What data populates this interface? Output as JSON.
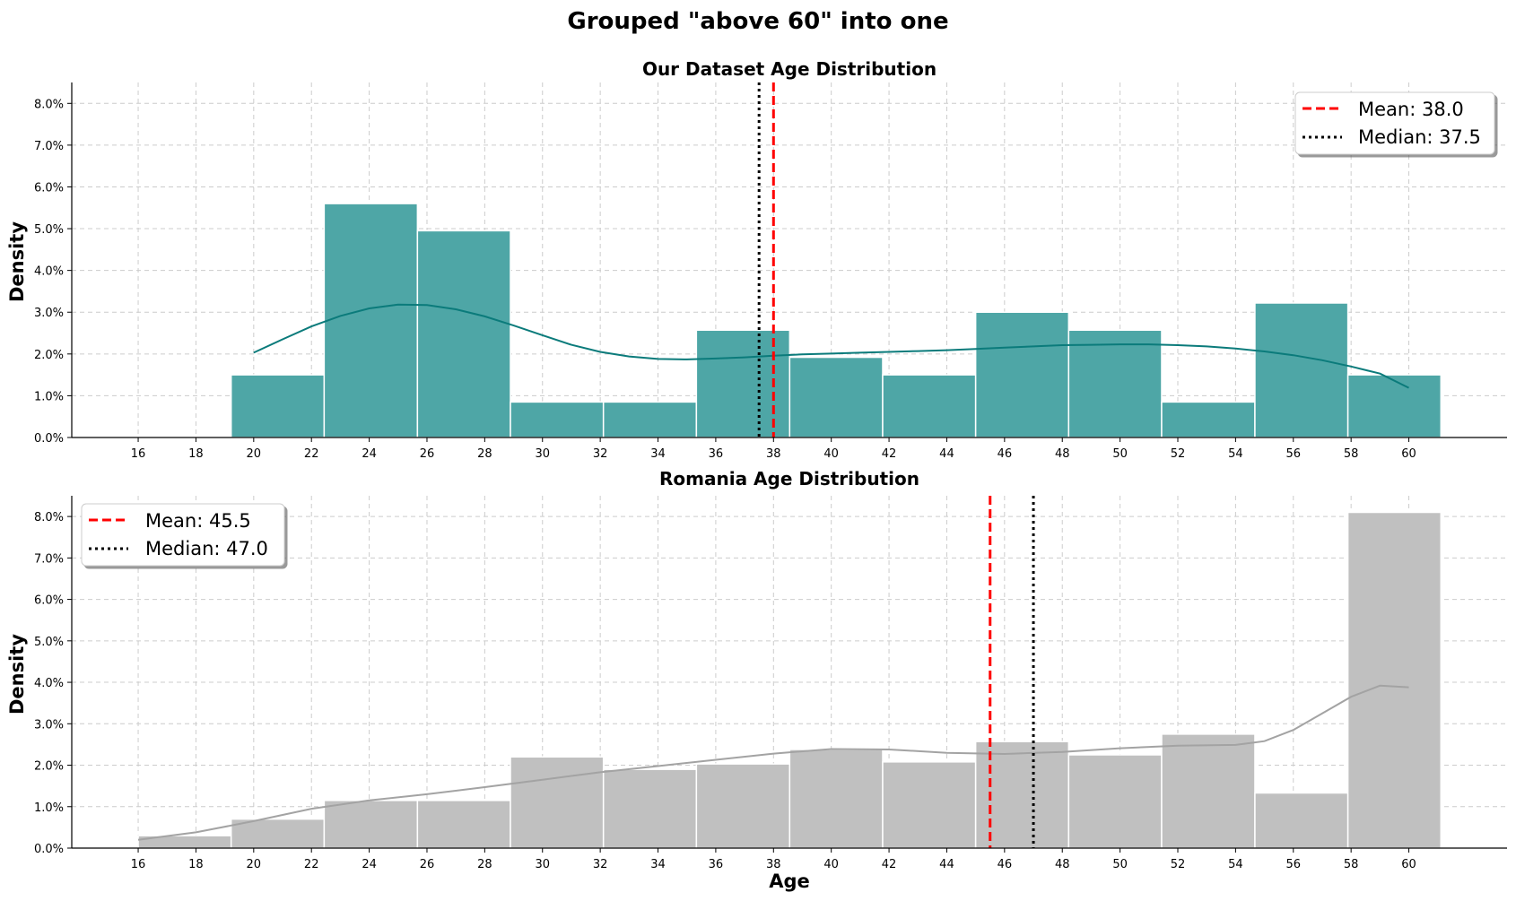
{
  "suptitle": "Grouped \"above 60\" into one",
  "colors": {
    "dataset": "#4ea6a6",
    "dataset_kde": "#0b7b7b",
    "romania": "#c0c0c0",
    "romania_kde": "#a3a3a3",
    "mean_line": "#ff0000",
    "median_line": "#000000",
    "grid": "#cccccc"
  },
  "chart_data": [
    {
      "type": "bar",
      "title": "Our Dataset Age Distribution",
      "xlabel": "",
      "ylabel": "Density",
      "xlim": [
        13.7,
        63.4
      ],
      "ylim": [
        0,
        0.085
      ],
      "xticks": [
        "16",
        "18",
        "20",
        "22",
        "24",
        "26",
        "28",
        "30",
        "32",
        "34",
        "36",
        "38",
        "40",
        "42",
        "44",
        "46",
        "48",
        "50",
        "52",
        "54",
        "56",
        "58",
        "60"
      ],
      "yticks": [
        "0.0%",
        "1.0%",
        "2.0%",
        "3.0%",
        "4.0%",
        "5.0%",
        "6.0%",
        "7.0%",
        "8.0%"
      ],
      "grid": true,
      "bin_edges": [
        16,
        19.22,
        22.44,
        25.67,
        28.89,
        32.11,
        35.33,
        38.56,
        41.78,
        45.0,
        48.22,
        51.44,
        54.67,
        57.89,
        61.11
      ],
      "values": [
        0.0,
        0.015,
        0.056,
        0.0495,
        0.0085,
        0.0085,
        0.0257,
        0.0192,
        0.015,
        0.03,
        0.0257,
        0.0085,
        0.0322,
        0.015
      ],
      "kde": {
        "x": [
          20,
          21,
          22,
          23,
          24,
          25,
          26,
          27,
          28,
          29,
          30,
          31,
          32,
          33,
          34,
          35,
          36,
          37,
          38,
          39,
          40,
          41,
          42,
          43,
          44,
          45,
          46,
          47,
          48,
          49,
          50,
          51,
          52,
          53,
          54,
          55,
          56,
          57,
          58,
          59,
          60
        ],
        "y": [
          0.0203,
          0.0235,
          0.0266,
          0.0291,
          0.0309,
          0.0318,
          0.0317,
          0.0307,
          0.029,
          0.0268,
          0.0245,
          0.0222,
          0.0205,
          0.0194,
          0.0188,
          0.0187,
          0.0189,
          0.0192,
          0.0196,
          0.0199,
          0.0201,
          0.0203,
          0.0205,
          0.0207,
          0.0209,
          0.0212,
          0.0215,
          0.0218,
          0.0221,
          0.0222,
          0.0223,
          0.0223,
          0.0221,
          0.0218,
          0.0213,
          0.0206,
          0.0197,
          0.0185,
          0.017,
          0.0153,
          0.0119
        ]
      },
      "mean": 38.0,
      "median": 37.5,
      "legend": {
        "placement": "top-right",
        "entries": [
          "Mean: 38.0",
          "Median: 37.5"
        ]
      }
    },
    {
      "type": "bar",
      "title": "Romania Age Distribution",
      "xlabel": "Age",
      "ylabel": "Density",
      "xlim": [
        13.7,
        63.4
      ],
      "ylim": [
        0,
        0.085
      ],
      "xticks": [
        "16",
        "18",
        "20",
        "22",
        "24",
        "26",
        "28",
        "30",
        "32",
        "34",
        "36",
        "38",
        "40",
        "42",
        "44",
        "46",
        "48",
        "50",
        "52",
        "54",
        "56",
        "58",
        "60"
      ],
      "yticks": [
        "0.0%",
        "1.0%",
        "2.0%",
        "3.0%",
        "4.0%",
        "5.0%",
        "6.0%",
        "7.0%",
        "8.0%"
      ],
      "grid": true,
      "bin_edges": [
        16,
        19.22,
        22.44,
        25.67,
        28.89,
        32.11,
        35.33,
        38.56,
        41.78,
        45.0,
        48.22,
        51.44,
        54.67,
        57.89,
        61.11
      ],
      "values": [
        0.003,
        0.007,
        0.0115,
        0.0115,
        0.022,
        0.019,
        0.0203,
        0.0238,
        0.0208,
        0.0257,
        0.0225,
        0.0275,
        0.0133,
        0.081
      ],
      "kde": {
        "x": [
          16,
          18,
          20,
          22,
          24,
          26,
          28,
          30,
          32,
          34,
          36,
          38,
          40,
          42,
          44,
          46,
          48,
          50,
          52,
          54,
          55,
          56,
          57,
          58,
          59,
          60
        ],
        "y": [
          0.002,
          0.0038,
          0.0065,
          0.0095,
          0.0115,
          0.013,
          0.0147,
          0.0165,
          0.0183,
          0.0198,
          0.0213,
          0.0228,
          0.0239,
          0.0238,
          0.023,
          0.0227,
          0.0232,
          0.0241,
          0.0247,
          0.0249,
          0.0258,
          0.0285,
          0.0325,
          0.0365,
          0.0392,
          0.0388
        ]
      },
      "mean": 45.5,
      "median": 47.0,
      "legend": {
        "placement": "top-left",
        "entries": [
          "Mean: 45.5",
          "Median: 47.0"
        ]
      }
    }
  ]
}
